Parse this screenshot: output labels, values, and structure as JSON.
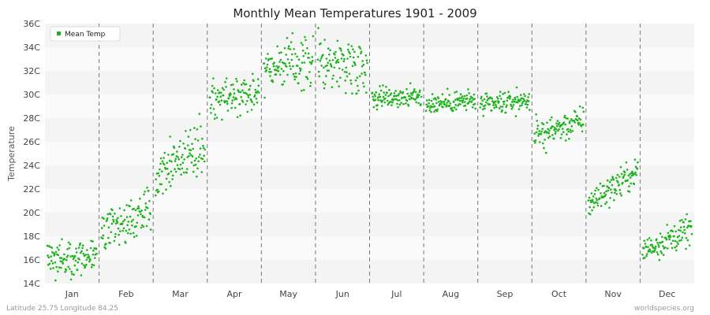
{
  "chart_data": {
    "type": "scatter",
    "title": "Monthly Mean Temperatures 1901 - 2009",
    "xlabel": "",
    "ylabel": "Temperature",
    "ylim": [
      14,
      36
    ],
    "y_ticks": [
      "14C",
      "16C",
      "18C",
      "20C",
      "22C",
      "24C",
      "26C",
      "28C",
      "30C",
      "32C",
      "34C",
      "36C"
    ],
    "categories": [
      "Jan",
      "Feb",
      "Mar",
      "Apr",
      "May",
      "Jun",
      "Jul",
      "Aug",
      "Sep",
      "Oct",
      "Nov",
      "Dec"
    ],
    "grid": true,
    "legend_position": "top-left",
    "series": [
      {
        "name": "Mean Temp",
        "color": "#1db31d",
        "monthly_range": [
          {
            "month": "Jan",
            "start": 16.2,
            "end": 16.2,
            "spread": 0.8
          },
          {
            "month": "Feb",
            "start": 18.2,
            "end": 20.2,
            "spread": 0.8
          },
          {
            "month": "Mar",
            "start": 23.5,
            "end": 25.8,
            "spread": 1.0
          },
          {
            "month": "Apr",
            "start": 29.5,
            "end": 30.4,
            "spread": 0.9
          },
          {
            "month": "May",
            "start": 32.4,
            "end": 32.7,
            "spread": 1.0
          },
          {
            "month": "Jun",
            "start": 32.8,
            "end": 32.5,
            "spread": 1.1
          },
          {
            "month": "Jul",
            "start": 29.8,
            "end": 29.8,
            "spread": 0.45
          },
          {
            "month": "Aug",
            "start": 29.2,
            "end": 29.5,
            "spread": 0.45
          },
          {
            "month": "Sep",
            "start": 29.0,
            "end": 29.6,
            "spread": 0.45
          },
          {
            "month": "Oct",
            "start": 26.5,
            "end": 27.8,
            "spread": 0.6
          },
          {
            "month": "Nov",
            "start": 20.8,
            "end": 23.5,
            "spread": 0.6
          },
          {
            "month": "Dec",
            "start": 16.8,
            "end": 18.6,
            "spread": 0.6
          }
        ],
        "points_per_month": 109
      }
    ]
  },
  "footer": {
    "left": "Latitude 25.75 Longitude 84.25",
    "right": "worldspecies.org"
  }
}
